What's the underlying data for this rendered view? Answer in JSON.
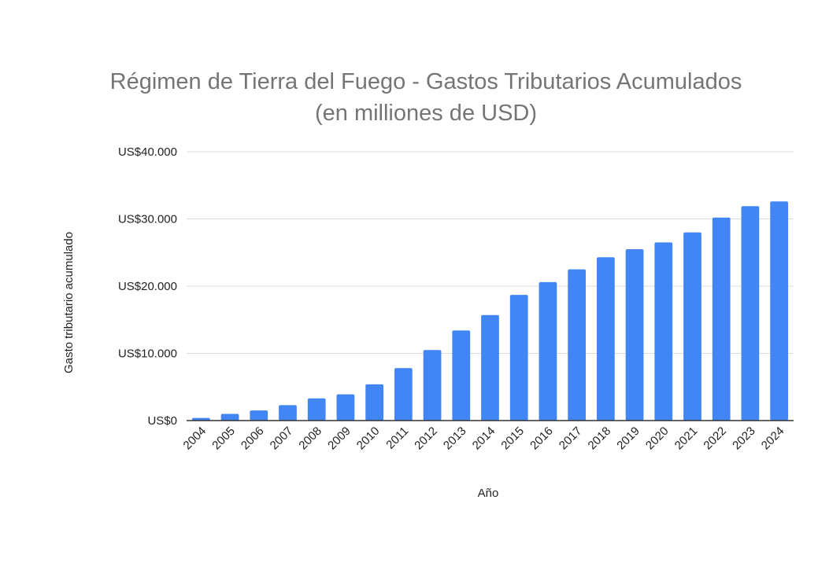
{
  "chart_data": {
    "type": "bar",
    "title_line1": "Régimen de Tierra del Fuego - Gastos Tributarios Acumulados",
    "title_line2": "(en milliones de USD)",
    "xlabel": "Año",
    "ylabel": "Gasto tributario acumulado",
    "categories": [
      "2004",
      "2005",
      "2006",
      "2007",
      "2008",
      "2009",
      "2010",
      "2011",
      "2012",
      "2013",
      "2014",
      "2015",
      "2016",
      "2017",
      "2018",
      "2019",
      "2020",
      "2021",
      "2022",
      "2023",
      "2024"
    ],
    "values": [
      400,
      1000,
      1500,
      2300,
      3300,
      3900,
      5400,
      7800,
      10500,
      13400,
      15700,
      18700,
      20600,
      22500,
      24300,
      25500,
      26500,
      28000,
      30200,
      31900,
      32600
    ],
    "ylim": [
      0,
      40000
    ],
    "yticks": [
      0,
      10000,
      20000,
      30000,
      40000
    ],
    "ytick_labels": [
      "US$0",
      "US$10.000",
      "US$20.000",
      "US$30.000",
      "US$40.000"
    ],
    "grid": true,
    "legend": "none",
    "bar_color": "#4285f4",
    "grid_color": "#dddddd",
    "axis_color": "#333333"
  }
}
